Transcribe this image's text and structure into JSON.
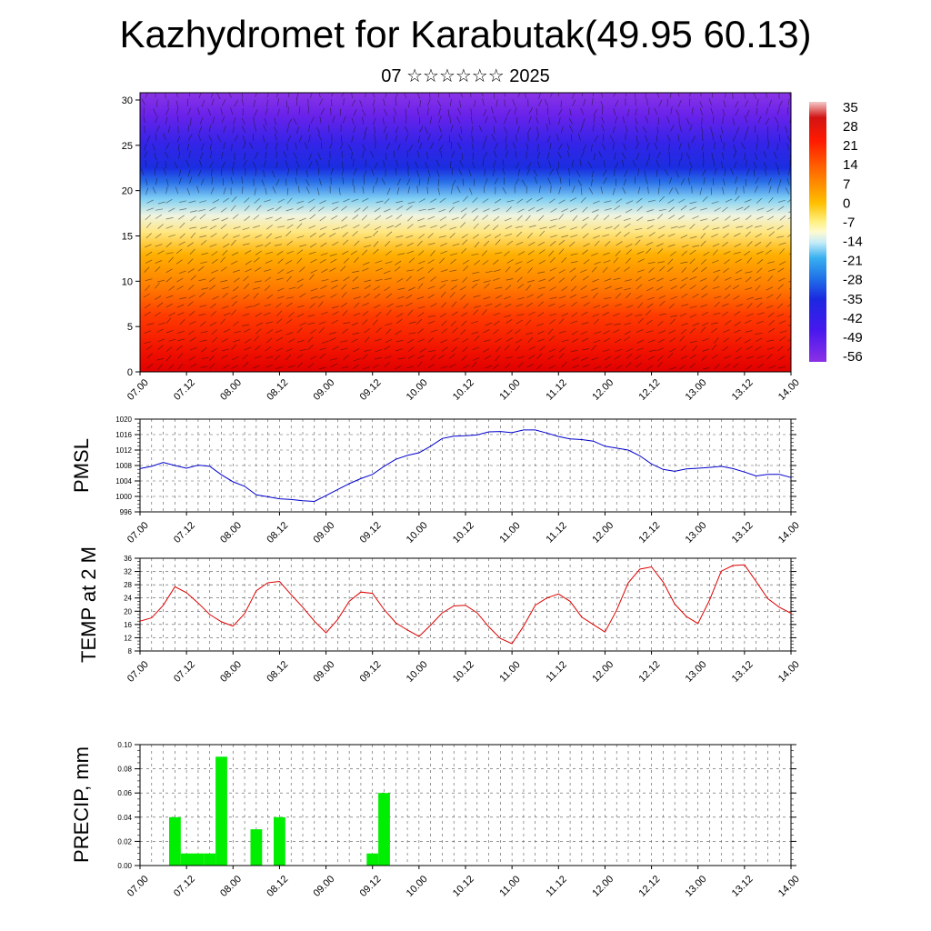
{
  "header": {
    "title": "Kazhydromet for Karabutak(49.95 60.13)",
    "subtitle": "07 ☆☆☆☆☆☆ 2025"
  },
  "chart_data": [
    {
      "type": "heatmap",
      "name": "cross-section",
      "description_of_fill": "temperature shading by height with wind barbs",
      "x_tick_labels": [
        "07.00",
        "07.12",
        "08.00",
        "08.12",
        "09.00",
        "09.12",
        "10.00",
        "10.12",
        "11.00",
        "11.12",
        "12.00",
        "12.12",
        "13.00",
        "13.12",
        "14.00"
      ],
      "y_ticks": [
        0,
        5,
        10,
        15,
        20,
        25,
        30
      ],
      "ylim": [
        0,
        30.8
      ],
      "colorbar_labels": [
        "35",
        "28",
        "21",
        "14",
        "7",
        "0",
        "-7",
        "-14",
        "-21",
        "-28",
        "-35",
        "-42",
        "-49",
        "-56"
      ],
      "colorbar_colors": [
        "#f2b8b8",
        "#cc0000",
        "#ff2200",
        "#ff6000",
        "#ff9a00",
        "#ffc000",
        "#ffe070",
        "#fff8c0",
        "#b0e0f8",
        "#40b4f0",
        "#2060e0",
        "#2020e8",
        "#5010f0",
        "#8a30e8"
      ]
    },
    {
      "type": "line",
      "name": "pressure",
      "ylabel": "PMSL",
      "ylim": [
        996,
        1020
      ],
      "y_ticks": [
        996,
        1000,
        1004,
        1008,
        1012,
        1016,
        1020
      ],
      "x_tick_labels": [
        "07.00",
        "07.12",
        "08.00",
        "08.12",
        "09.00",
        "09.12",
        "10.00",
        "10.12",
        "11.00",
        "11.12",
        "12.00",
        "12.12",
        "13.00",
        "13.12",
        "14.00"
      ],
      "color": "#0000cc",
      "x": [
        0,
        3,
        6,
        9,
        12,
        15,
        18,
        21,
        24,
        27,
        30,
        33,
        36,
        39,
        42,
        45,
        48,
        51,
        54,
        57,
        60,
        63,
        66,
        69,
        72,
        75,
        78,
        81,
        84,
        87,
        90,
        93,
        96,
        99,
        102,
        105,
        108,
        111,
        114,
        117,
        120,
        123,
        126,
        129,
        132,
        135,
        138,
        141,
        144,
        147,
        150,
        153,
        156,
        159,
        162,
        165,
        168
      ],
      "values": [
        1007.2,
        1007.8,
        1008.8,
        1008.0,
        1007.3,
        1008.1,
        1007.8,
        1005.6,
        1003.8,
        1002.6,
        1000.4,
        999.9,
        999.4,
        999.2,
        998.9,
        998.7,
        1000.2,
        1001.8,
        1003.3,
        1004.6,
        1005.7,
        1007.8,
        1009.6,
        1010.6,
        1011.3,
        1013.0,
        1015.0,
        1015.6,
        1015.7,
        1015.9,
        1016.7,
        1016.8,
        1016.5,
        1017.2,
        1017.2,
        1016.4,
        1015.5,
        1014.9,
        1014.7,
        1014.3,
        1013.0,
        1012.5,
        1012.0,
        1010.5,
        1008.4,
        1007.0,
        1006.5,
        1007.1,
        1007.3,
        1007.5,
        1007.8,
        1007.2,
        1006.3,
        1005.3,
        1005.7,
        1005.7,
        1004.9
      ]
    },
    {
      "type": "line",
      "name": "temperature",
      "ylabel": "TEMP at 2 M",
      "ylim": [
        8,
        36
      ],
      "y_ticks": [
        8,
        12,
        16,
        20,
        24,
        28,
        32,
        36
      ],
      "x_tick_labels": [
        "07.00",
        "07.12",
        "08.00",
        "08.12",
        "09.00",
        "09.12",
        "10.00",
        "10.12",
        "11.00",
        "11.12",
        "12.00",
        "12.12",
        "13.00",
        "13.12",
        "14.00"
      ],
      "color": "#dd0000",
      "x": [
        0,
        3,
        6,
        9,
        12,
        15,
        18,
        21,
        24,
        27,
        30,
        33,
        36,
        39,
        42,
        45,
        48,
        51,
        54,
        57,
        60,
        63,
        66,
        69,
        72,
        75,
        78,
        81,
        84,
        87,
        90,
        93,
        96,
        99,
        102,
        105,
        108,
        111,
        114,
        117,
        120,
        123,
        126,
        129,
        132,
        135,
        138,
        141,
        144,
        147,
        150,
        153,
        156,
        159,
        162,
        165,
        168
      ],
      "values": [
        17.0,
        18.0,
        21.8,
        27.4,
        25.6,
        22.5,
        19.0,
        16.8,
        15.5,
        19.3,
        26.2,
        28.6,
        29.0,
        25.0,
        21.2,
        17.0,
        13.5,
        17.5,
        23.0,
        25.8,
        25.4,
        20.5,
        16.5,
        14.3,
        12.4,
        15.8,
        19.5,
        21.6,
        21.8,
        19.5,
        15.3,
        11.8,
        10.2,
        15.5,
        21.8,
        24.0,
        25.2,
        23.0,
        18.2,
        16.0,
        13.7,
        20.3,
        28.6,
        32.7,
        33.4,
        28.8,
        22.2,
        18.4,
        16.3,
        23.4,
        32.1,
        33.8,
        34.0,
        29.0,
        23.8,
        21.2,
        19.4
      ]
    },
    {
      "type": "bar",
      "name": "precip",
      "ylabel": "PRECIP, mm",
      "ylim": [
        0,
        0.1
      ],
      "y_ticks": [
        "0.00",
        "0.02",
        "0.04",
        "0.06",
        "0.08",
        "0.10"
      ],
      "x_tick_labels": [
        "07.00",
        "07.12",
        "08.00",
        "08.12",
        "09.00",
        "09.12",
        "10.00",
        "10.12",
        "11.00",
        "11.12",
        "12.00",
        "12.12",
        "13.00",
        "13.12",
        "14.00"
      ],
      "color": "#00ee00",
      "x": [
        9,
        12,
        15,
        18,
        21,
        27,
        30,
        33,
        36,
        39,
        42,
        45,
        48,
        51,
        54,
        57,
        60,
        63
      ],
      "values": [
        0.04,
        0.01,
        0.01,
        0.01,
        0.09,
        0,
        0.03,
        0,
        0.04,
        0,
        0,
        0,
        0,
        0,
        0,
        0,
        0.01,
        0.06
      ]
    }
  ]
}
